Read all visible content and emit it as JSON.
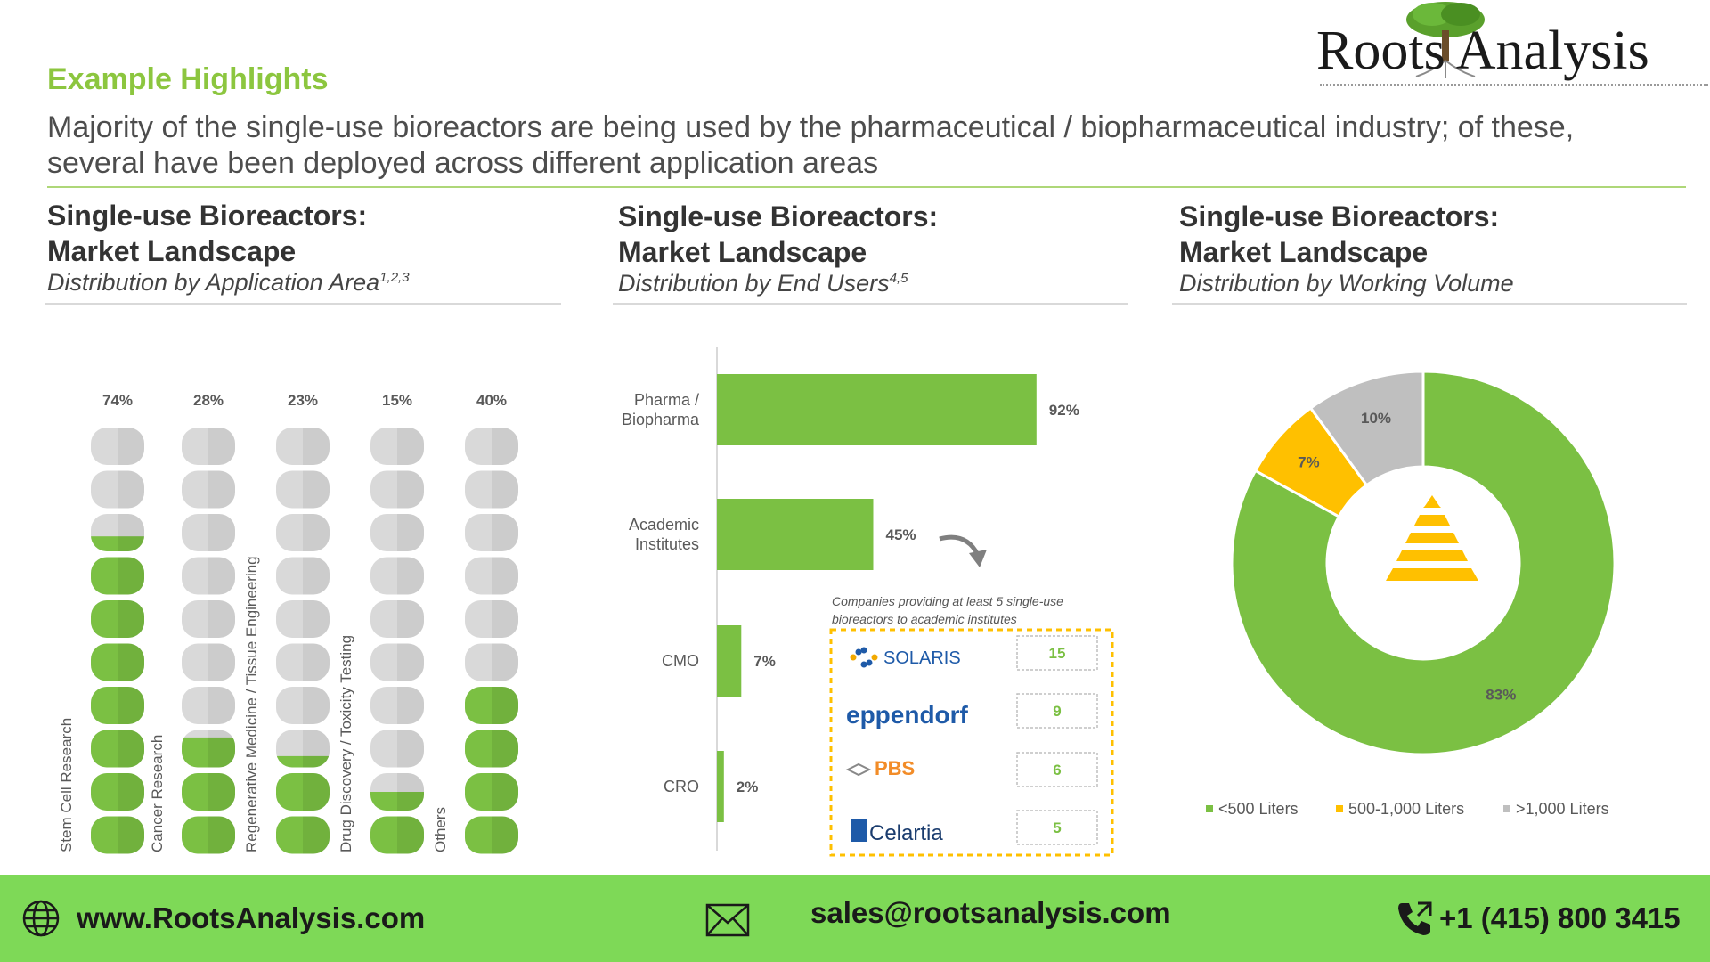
{
  "header": {
    "kicker": "Example Highlights",
    "headline": "Majority of the single-use bioreactors are being used by the pharmaceutical / biopharmaceutical industry; of these, several have been deployed across different application areas",
    "logo_text": "Roots Analysis"
  },
  "panels": [
    {
      "title_line1": "Single-use Bioreactors:",
      "title_line2": "Market Landscape",
      "subtitle": "Distribution by Application Area",
      "sup": "1,2,3"
    },
    {
      "title_line1": "Single-use Bioreactors:",
      "title_line2": "Market Landscape",
      "subtitle": "Distribution by End Users",
      "sup": "4,5"
    },
    {
      "title_line1": "Single-use Bioreactors:",
      "title_line2": "Market Landscape",
      "subtitle": "Distribution by Working Volume",
      "sup": ""
    }
  ],
  "chart_data": [
    {
      "type": "bar",
      "title": "Distribution by Application Area",
      "categories": [
        "Stem Cell Research",
        "Cancer Research",
        "Regenerative Medicine / Tissue Engineering",
        "Drug Discovery / Toxicity Testing",
        "Others"
      ],
      "values": [
        74,
        28,
        23,
        15,
        40
      ],
      "labels": [
        "74%",
        "28%",
        "23%",
        "15%",
        "40%"
      ],
      "unit": "%",
      "ylim": [
        0,
        100
      ],
      "colors": {
        "fill": "#7bc043",
        "empty": "#d9d9d9"
      }
    },
    {
      "type": "bar",
      "orientation": "horizontal",
      "title": "Distribution by End Users",
      "categories": [
        "Pharma / Biopharma",
        "Academic Institutes",
        "CMO",
        "CRO"
      ],
      "values": [
        92,
        45,
        7,
        2
      ],
      "labels": [
        "92%",
        "45%",
        "7%",
        "2%"
      ],
      "unit": "%",
      "colors": {
        "bar": "#7bc043"
      },
      "annotation": {
        "text_line1": "Companies providing at least 5 single-use",
        "text_line2": "bioreactors to academic institutes",
        "companies": [
          {
            "name": "SOLARIS",
            "count": 15,
            "count_label": "15"
          },
          {
            "name": "eppendorf",
            "count": 9,
            "count_label": "9"
          },
          {
            "name": "PBS",
            "count": 6,
            "count_label": "6"
          },
          {
            "name": "Celartia",
            "count": 5,
            "count_label": "5"
          }
        ]
      }
    },
    {
      "type": "pie",
      "variant": "donut",
      "title": "Distribution by Working Volume",
      "categories": [
        "<500 Liters",
        "500-1,000 Liters",
        ">1,000 Liters"
      ],
      "values": [
        83,
        7,
        10
      ],
      "labels": [
        "83%",
        "7%",
        "10%"
      ],
      "unit": "%",
      "colors": [
        "#7bc043",
        "#ffc000",
        "#bfbfbf"
      ],
      "legend_position": "bottom"
    }
  ],
  "footer": {
    "website": "www.RootsAnalysis.com",
    "email": "sales@rootsanalysis.com",
    "phone": "+1 (415) 800 3415",
    "icons": [
      "globe-icon",
      "envelope-icon",
      "phone-icon"
    ]
  }
}
